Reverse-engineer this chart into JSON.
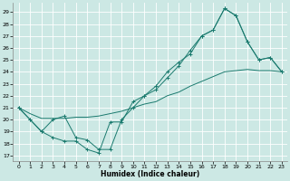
{
  "xlabel": "Humidex (Indice chaleur)",
  "bg_color": "#cce8e4",
  "grid_color": "#b8d8d4",
  "line_color": "#1a7a6e",
  "xlim": [
    -0.5,
    23.5
  ],
  "ylim": [
    16.5,
    29.8
  ],
  "yticks": [
    17,
    18,
    19,
    20,
    21,
    22,
    23,
    24,
    25,
    26,
    27,
    28,
    29
  ],
  "xticks": [
    0,
    1,
    2,
    3,
    4,
    5,
    6,
    7,
    8,
    9,
    10,
    11,
    12,
    13,
    14,
    15,
    16,
    17,
    18,
    19,
    20,
    21,
    22,
    23
  ],
  "line1_x": [
    0,
    1,
    2,
    3,
    4,
    5,
    6,
    7,
    8,
    9,
    10,
    11,
    12,
    13,
    14,
    15,
    16,
    17,
    18,
    19,
    20,
    21,
    22,
    23
  ],
  "line1_y": [
    21,
    20,
    19,
    18.5,
    18.2,
    18.2,
    17.5,
    17.2,
    19.8,
    19.8,
    21.5,
    22,
    22.5,
    23.5,
    24.5,
    25.8,
    27,
    27.5,
    29.3,
    28.7,
    26.5,
    25,
    25.2,
    24
  ],
  "line2_x": [
    0,
    1,
    2,
    3,
    4,
    5,
    6,
    7,
    8,
    9,
    10,
    11,
    12,
    13,
    14,
    15,
    16,
    17,
    18,
    19,
    20,
    21,
    22,
    23
  ],
  "line2_y": [
    21,
    20,
    19,
    20,
    20.3,
    18.5,
    18.3,
    17.5,
    17.5,
    20,
    21,
    22,
    22.8,
    24,
    24.8,
    25.5,
    27,
    27.5,
    29.3,
    28.7,
    26.5,
    25,
    25.2,
    24
  ],
  "line3_x": [
    0,
    1,
    2,
    3,
    4,
    5,
    6,
    7,
    8,
    9,
    10,
    11,
    12,
    13,
    14,
    15,
    16,
    17,
    18,
    19,
    20,
    21,
    22,
    23
  ],
  "line3_y": [
    21,
    20.5,
    20.1,
    20.1,
    20.1,
    20.2,
    20.2,
    20.3,
    20.5,
    20.7,
    21,
    21.3,
    21.5,
    22,
    22.3,
    22.8,
    23.2,
    23.6,
    24,
    24.1,
    24.2,
    24.1,
    24.1,
    24
  ]
}
